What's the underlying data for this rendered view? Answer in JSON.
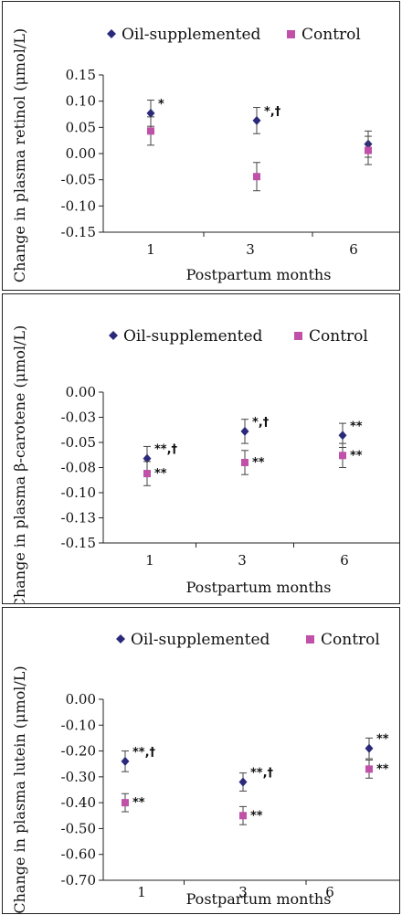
{
  "colors": {
    "oil": "#2b2a7a",
    "control": "#c050a8",
    "axis": "#222222"
  },
  "chart_data": [
    {
      "type": "scatter",
      "ylabel": "Change in plasma retinol (μmol/L)",
      "xlabel": "Postpartum months",
      "categories": [
        "1",
        "3",
        "6"
      ],
      "ylim": [
        -0.15,
        0.15
      ],
      "yticks": [
        0.15,
        0.1,
        0.05,
        0.0,
        -0.05,
        -0.1,
        -0.15
      ],
      "ytick_labels": [
        "0.15",
        "0.10",
        "0.05",
        "0.00",
        "-0.05",
        "-0.10",
        "-0.15"
      ],
      "legend": [
        "Oil-supplemented",
        "Control"
      ],
      "series": [
        {
          "name": "Oil-supplemented",
          "values": [
            0.077,
            0.063,
            0.018
          ],
          "err": [
            0.025,
            0.025,
            0.025
          ],
          "annotations": [
            "*",
            "*,†",
            ""
          ]
        },
        {
          "name": "Control",
          "values": [
            0.043,
            -0.044,
            0.006
          ],
          "err": [
            0.027,
            0.027,
            0.027
          ],
          "annotations": [
            "",
            "",
            ""
          ]
        }
      ]
    },
    {
      "type": "scatter",
      "ylabel": "Change in plasma β-carotene (μmol/L)",
      "xlabel": "Postpartum months",
      "categories": [
        "1",
        "3",
        "6"
      ],
      "ylim": [
        -0.15,
        0.0
      ],
      "yticks": [
        0.0,
        -0.025,
        -0.05,
        -0.075,
        -0.1,
        -0.125,
        -0.15
      ],
      "ytick_labels": [
        "0.00",
        "-0.03",
        "-0.05",
        "-0.08",
        "-0.10",
        "-0.13",
        "-0.15"
      ],
      "legend": [
        "Oil-supplemented",
        "Control"
      ],
      "series": [
        {
          "name": "Oil-supplemented",
          "values": [
            -0.066,
            -0.039,
            -0.043
          ],
          "err": [
            0.012,
            0.012,
            0.012
          ],
          "annotations": [
            "**,†",
            "*,†",
            "**"
          ]
        },
        {
          "name": "Control",
          "values": [
            -0.081,
            -0.07,
            -0.063
          ],
          "err": [
            0.012,
            0.012,
            0.012
          ],
          "annotations": [
            "**",
            "**",
            "**"
          ]
        }
      ]
    },
    {
      "type": "scatter",
      "ylabel": "Change in plasma lutein (μmol/L)",
      "xlabel": "Postpartum months",
      "categories": [
        "1",
        "3",
        "6"
      ],
      "ylim": [
        -0.7,
        0.0
      ],
      "yticks": [
        0.0,
        -0.1,
        -0.2,
        -0.3,
        -0.4,
        -0.5,
        -0.6,
        -0.7
      ],
      "ytick_labels": [
        "0.00",
        "-0.10",
        "-0.20",
        "-0.30",
        "-0.40",
        "-0.50",
        "-0.60",
        "-0.70"
      ],
      "legend": [
        "Oil-supplemented",
        "Control"
      ],
      "series": [
        {
          "name": "Oil-supplemented",
          "values": [
            -0.24,
            -0.32,
            -0.19
          ],
          "err": [
            0.04,
            0.035,
            0.04
          ],
          "annotations": [
            "**,†",
            "**,†",
            "**"
          ]
        },
        {
          "name": "Control",
          "values": [
            -0.4,
            -0.45,
            -0.27
          ],
          "err": [
            0.035,
            0.035,
            0.035
          ],
          "annotations": [
            "**",
            "**",
            "**"
          ]
        }
      ]
    }
  ]
}
